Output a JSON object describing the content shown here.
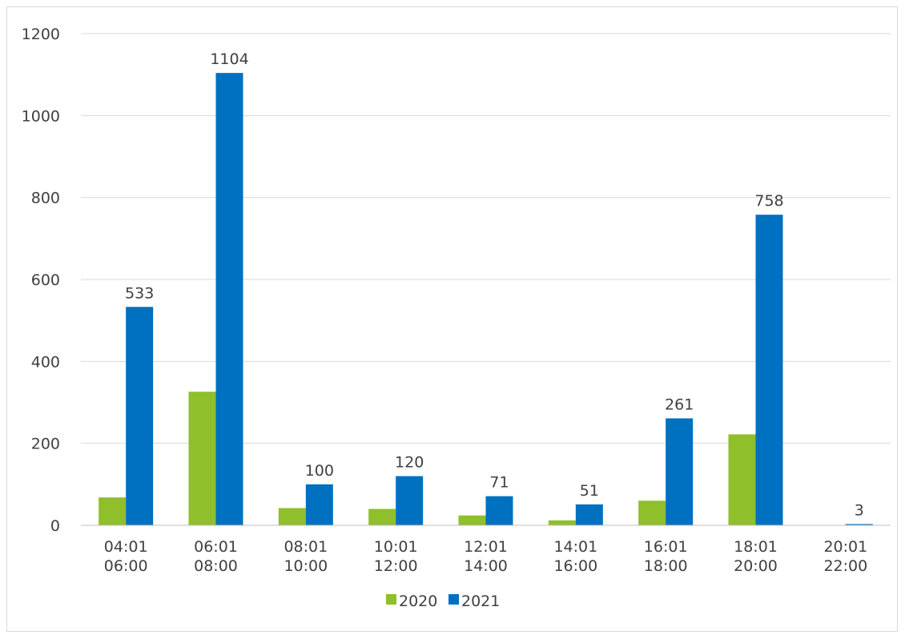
{
  "chart_data": {
    "type": "bar",
    "categories": [
      [
        "04:01",
        "06:00"
      ],
      [
        "06:01",
        "08:00"
      ],
      [
        "08:01",
        "10:00"
      ],
      [
        "10:01",
        "12:00"
      ],
      [
        "12:01",
        "14:00"
      ],
      [
        "14:01",
        "16:00"
      ],
      [
        "16:01",
        "18:00"
      ],
      [
        "18:01",
        "20:00"
      ],
      [
        "20:01",
        "22:00"
      ]
    ],
    "series": [
      {
        "name": "2020",
        "color": "#8fbf2a",
        "values": [
          68,
          326,
          42,
          40,
          24,
          12,
          60,
          222,
          0
        ],
        "show_labels": false
      },
      {
        "name": "2021",
        "color": "#0070c0",
        "values": [
          533,
          1104,
          100,
          120,
          71,
          51,
          261,
          758,
          3
        ],
        "show_labels": true
      }
    ],
    "data_labels": [
      "533",
      "1104",
      "100",
      "120",
      "71",
      "51",
      "261",
      "758",
      "3"
    ],
    "y_ticks": [
      "0",
      "200",
      "400",
      "600",
      "800",
      "1000",
      "1200"
    ],
    "ylim": [
      0,
      1200
    ],
    "grid": true,
    "legend": {
      "placement": "bottom",
      "entries": [
        "2020",
        "2021"
      ]
    },
    "gridline_color": "#d9d9d9",
    "axis_color": "#bfbfbf"
  }
}
